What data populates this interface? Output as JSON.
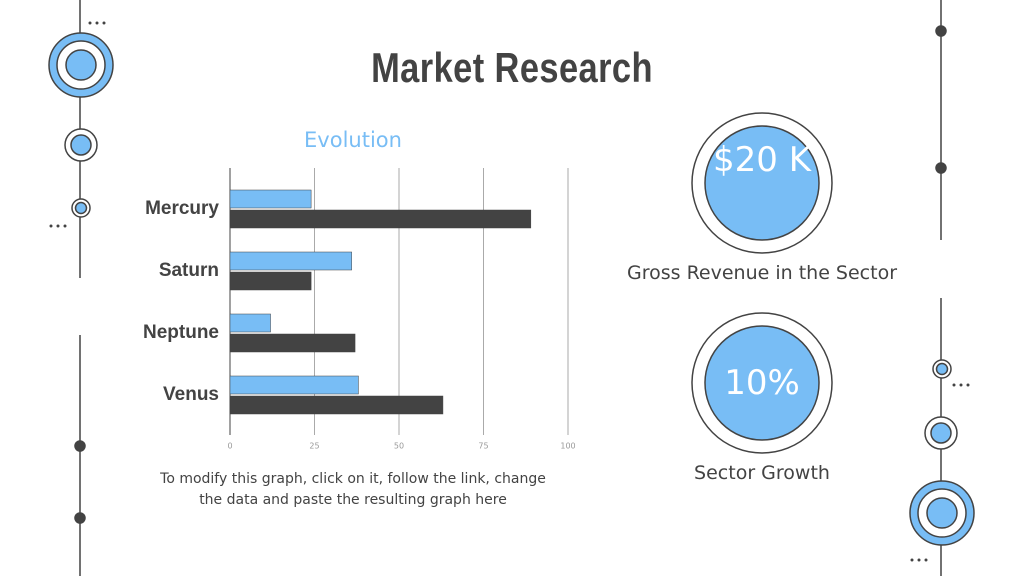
{
  "title": "Market Research",
  "chart_data": {
    "type": "bar",
    "orientation": "horizontal",
    "title": "Evolution",
    "categories": [
      "Mercury",
      "Saturn",
      "Neptune",
      "Venus"
    ],
    "series": [
      {
        "color": "#78bdf5",
        "values": [
          24,
          36,
          12,
          38
        ]
      },
      {
        "color": "#434343",
        "values": [
          89,
          24,
          37,
          63
        ]
      }
    ],
    "xlim": [
      0,
      100
    ],
    "xticks": [
      0,
      25,
      50,
      75,
      100
    ],
    "grid": true
  },
  "note": "To modify this graph, click on it, follow the link, change the data and paste the resulting graph here",
  "stats": [
    {
      "value": "$20 K",
      "label": "Gross Revenue in the Sector"
    },
    {
      "value": "10%",
      "label": "Sector Growth"
    }
  ]
}
